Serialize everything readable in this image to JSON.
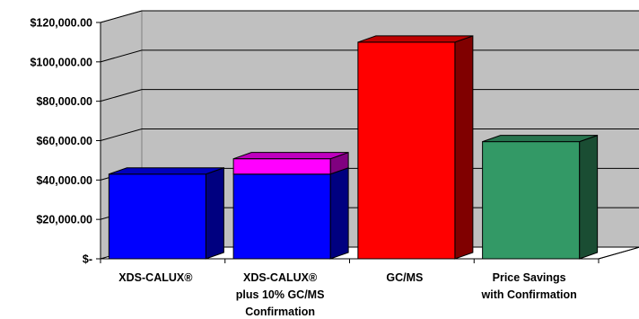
{
  "chart_data": {
    "type": "bar",
    "stacked": true,
    "three_d": true,
    "categories": [
      [
        "XDS-CALUX®"
      ],
      [
        "XDS-CALUX®",
        "plus 10% GC/MS",
        "Confirmation"
      ],
      [
        "GC/MS"
      ],
      [
        "Price Savings",
        "with Confirmation"
      ]
    ],
    "series": [
      {
        "values": [
          43000,
          43000,
          110000,
          59500
        ]
      },
      {
        "values": [
          0,
          7800,
          0,
          0
        ]
      }
    ],
    "bar_colors": [
      [
        "#0000FF",
        "#FF00FF"
      ],
      [
        "#0000FF",
        "#FF00FF"
      ],
      [
        "#FF0000",
        "#FF0000"
      ],
      [
        "#339966",
        "#339966"
      ]
    ],
    "ylim": [
      0,
      120000
    ],
    "y_ticks": [
      0,
      20000,
      40000,
      60000,
      80000,
      100000,
      120000
    ],
    "y_tick_labels": [
      "$-",
      "$20,000.00",
      "$40,000.00",
      "$60,000.00",
      "$80,000.00",
      "$100,000.00",
      "$120,000.00"
    ],
    "grid": true,
    "wall_color": "#C0C0C0",
    "title": "",
    "xlabel": "",
    "ylabel": ""
  }
}
